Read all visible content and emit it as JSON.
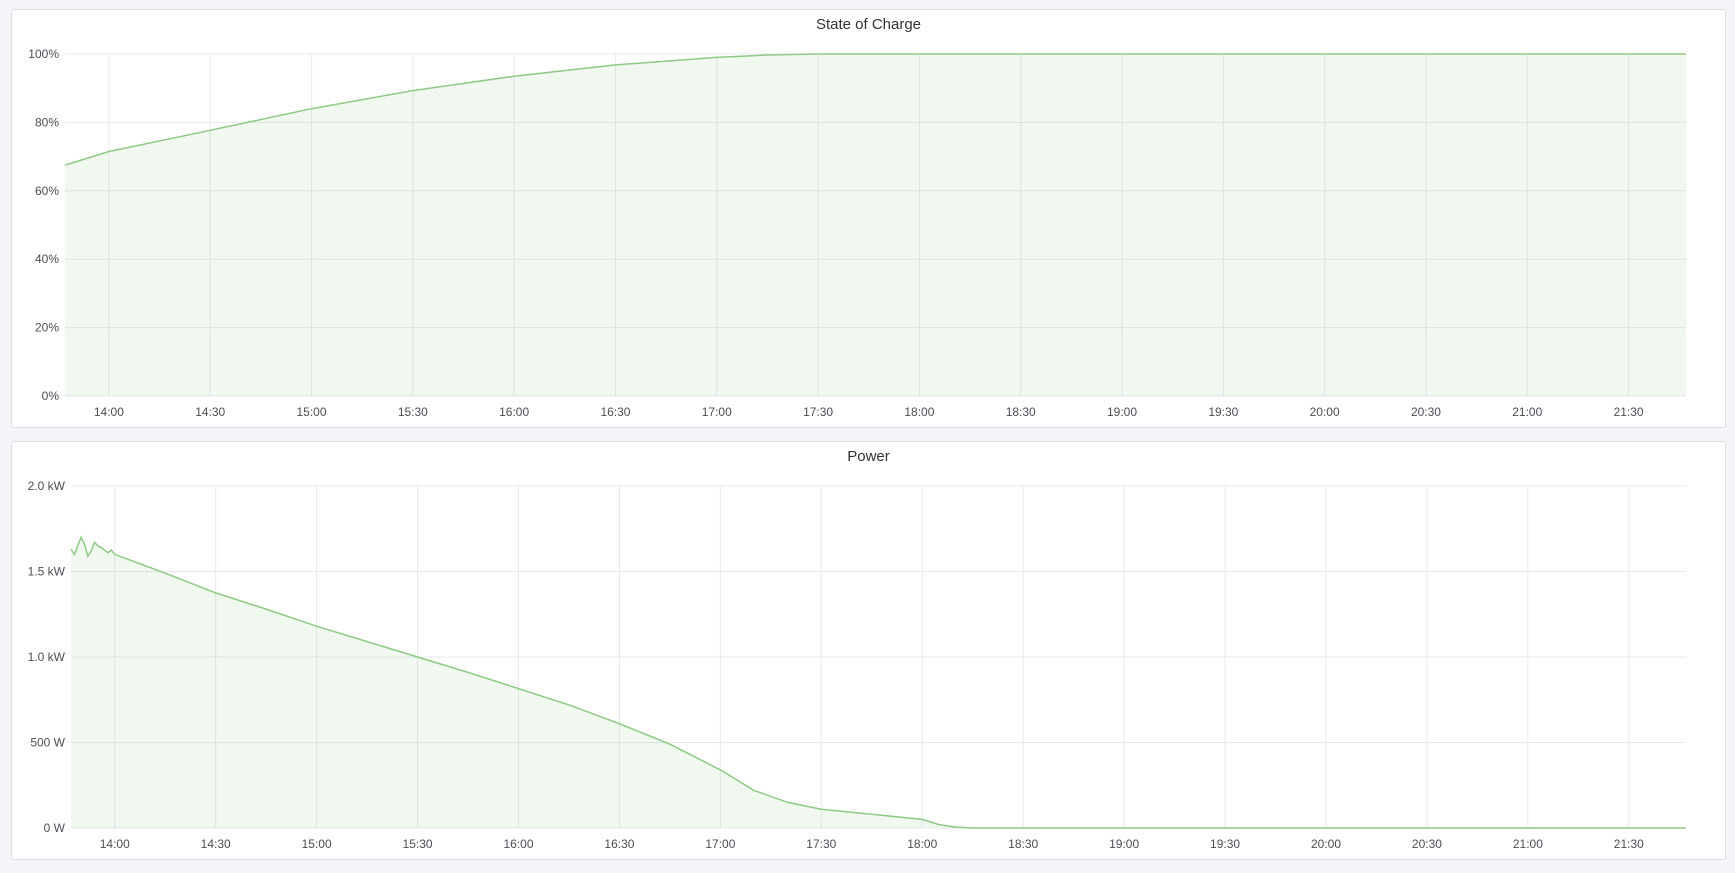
{
  "chart_data": [
    {
      "type": "area",
      "title": "State of Charge",
      "x_range": [
        "13:47",
        "21:47"
      ],
      "ylim": [
        0,
        100
      ],
      "y_ticks": [
        "0%",
        "20%",
        "40%",
        "60%",
        "80%",
        "100%"
      ],
      "y_tick_values": [
        0,
        20,
        40,
        60,
        80,
        100
      ],
      "x_ticks": [
        "14:00",
        "14:30",
        "15:00",
        "15:30",
        "16:00",
        "16:30",
        "17:00",
        "17:30",
        "18:00",
        "18:30",
        "19:00",
        "19:30",
        "20:00",
        "20:30",
        "21:00",
        "21:30"
      ],
      "grid": true,
      "color": "#8fc986",
      "series": [
        {
          "x": [
            "13:47",
            "14:00",
            "14:30",
            "15:00",
            "15:30",
            "16:00",
            "16:30",
            "17:00",
            "17:15",
            "17:30",
            "18:00",
            "21:47"
          ],
          "values": [
            67.5,
            71.5,
            77.7,
            84,
            89.3,
            93.5,
            96.8,
            99,
            99.7,
            100,
            100,
            100
          ]
        }
      ]
    },
    {
      "type": "area",
      "title": "Power",
      "x_range": [
        "13:47",
        "21:47"
      ],
      "ylim": [
        0,
        2000
      ],
      "y_ticks": [
        "0 W",
        "500 W",
        "1.0 kW",
        "1.5 kW",
        "2.0 kW"
      ],
      "y_tick_values": [
        0,
        500,
        1000,
        1500,
        2000
      ],
      "x_ticks": [
        "14:00",
        "14:30",
        "15:00",
        "15:30",
        "16:00",
        "16:30",
        "17:00",
        "17:30",
        "18:00",
        "18:30",
        "19:00",
        "19:30",
        "20:00",
        "20:30",
        "21:00",
        "21:30"
      ],
      "grid": true,
      "color": "#8fc986",
      "series": [
        {
          "x": [
            "13:47",
            "13:48",
            "13:49",
            "13:50",
            "13:51",
            "13:52",
            "13:53",
            "13:54",
            "13:55",
            "13:56",
            "13:58",
            "13:59",
            "14:00",
            "14:15",
            "14:30",
            "14:45",
            "15:00",
            "15:15",
            "15:30",
            "15:45",
            "16:00",
            "16:15",
            "16:30",
            "16:45",
            "17:00",
            "17:10",
            "17:20",
            "17:30",
            "17:45",
            "18:00",
            "18:05",
            "18:10",
            "18:15",
            "21:47"
          ],
          "values": [
            1630,
            1600,
            1650,
            1700,
            1660,
            1590,
            1620,
            1670,
            1650,
            1640,
            1610,
            1625,
            1600,
            1490,
            1375,
            1280,
            1180,
            1090,
            1000,
            910,
            815,
            720,
            610,
            490,
            340,
            220,
            150,
            110,
            80,
            50,
            20,
            5,
            0,
            0
          ]
        }
      ]
    }
  ]
}
